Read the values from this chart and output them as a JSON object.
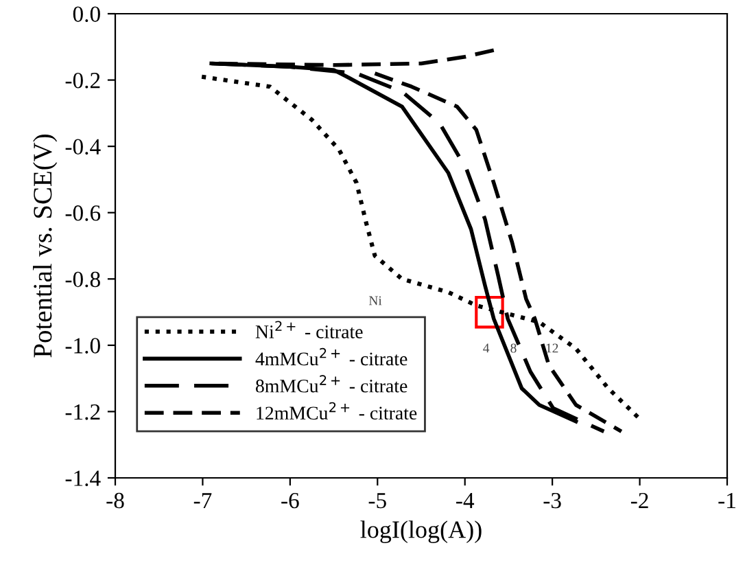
{
  "chart_data": {
    "type": "line",
    "xlabel": "logI(log(A))",
    "ylabel": "Potential vs. SCE(V)",
    "xlim": [
      -8,
      -1
    ],
    "xticks": [
      -8,
      -7,
      -6,
      -5,
      -4,
      -3,
      -2,
      -1
    ],
    "ylim": [
      -1.4,
      0.0
    ],
    "yticks": [
      {
        "value": -1.4,
        "label": "-1.4"
      },
      {
        "value": -1.2,
        "label": "-1.2"
      },
      {
        "value": -1.0,
        "label": "-1.0"
      },
      {
        "value": -0.8,
        "label": "-0.8"
      },
      {
        "value": -0.6,
        "label": "-0.6"
      },
      {
        "value": -0.4,
        "label": "-0.4"
      },
      {
        "value": -0.2,
        "label": "-0.2"
      },
      {
        "value": 0.0,
        "label": "0.0"
      }
    ],
    "grid": false,
    "legend": "bottom left",
    "marker": "none",
    "series": [
      {
        "name": "Ni$^{2+}$ - citrate",
        "color": "#000000",
        "line_style": "dotted",
        "x": [
          -7.01,
          -6.23,
          -5.75,
          -5.44,
          -5.24,
          -5.13,
          -5.03,
          -4.72,
          -4.19,
          -3.87,
          -3.15,
          -2.73,
          -2.36,
          -1.97
        ],
        "values": [
          -0.19,
          -0.22,
          -0.32,
          -0.41,
          -0.51,
          -0.63,
          -0.73,
          -0.8,
          -0.84,
          -0.88,
          -0.93,
          -1.01,
          -1.13,
          -1.23
        ]
      },
      {
        "name": "4mMCu$^{2+}$ - citrate",
        "color": "#000000",
        "line_style": "solid",
        "x": [
          -6.9,
          -6.0,
          -5.5,
          -5.35,
          -4.72,
          -4.19,
          -3.93,
          -3.77,
          -3.67,
          -3.35,
          -3.15,
          -2.73
        ],
        "values": [
          -0.15,
          -0.16,
          -0.17,
          -0.19,
          -0.28,
          -0.48,
          -0.65,
          -0.82,
          -0.92,
          -1.13,
          -1.18,
          -1.23
        ]
      },
      {
        "name": "8mMCu$^{2+}$ - citrate",
        "color": "#000000",
        "line_style": "dashed",
        "x": [
          -6.9,
          -6.0,
          -5.24,
          -4.72,
          -4.29,
          -3.98,
          -3.77,
          -3.62,
          -3.51,
          -3.25,
          -2.99,
          -2.41
        ],
        "values": [
          -0.15,
          -0.16,
          -0.18,
          -0.235,
          -0.33,
          -0.47,
          -0.62,
          -0.79,
          -0.92,
          -1.08,
          -1.19,
          -1.26
        ]
      },
      {
        "name": "12mMCu$^{2+}$ - citrate",
        "color": "#000000",
        "line_style": "dashed",
        "x": [
          -5.03,
          -4.61,
          -4.09,
          -3.87,
          -3.67,
          -3.46,
          -3.3,
          -3.2,
          -3.04,
          -2.73,
          -2.21
        ],
        "values": [
          -0.18,
          -0.22,
          -0.28,
          -0.35,
          -0.51,
          -0.69,
          -0.86,
          -0.92,
          -1.06,
          -1.18,
          -1.26
        ]
      },
      {
        "color": "#000000",
        "line_style": "dashed",
        "x": [
          -6.9,
          -5.5,
          -4.5,
          -4.0,
          -3.67
        ],
        "values": [
          -0.15,
          -0.155,
          -0.15,
          -0.13,
          -0.11
        ]
      }
    ],
    "annotations": [
      {
        "text": "Ni",
        "x": -4.72,
        "y": -0.8
      },
      {
        "text": "4",
        "x": -3.67,
        "y": -0.92
      },
      {
        "text": "8",
        "x": -3.51,
        "y": -0.92
      },
      {
        "text": "12",
        "x": -3.2,
        "y": -0.92
      }
    ]
  }
}
